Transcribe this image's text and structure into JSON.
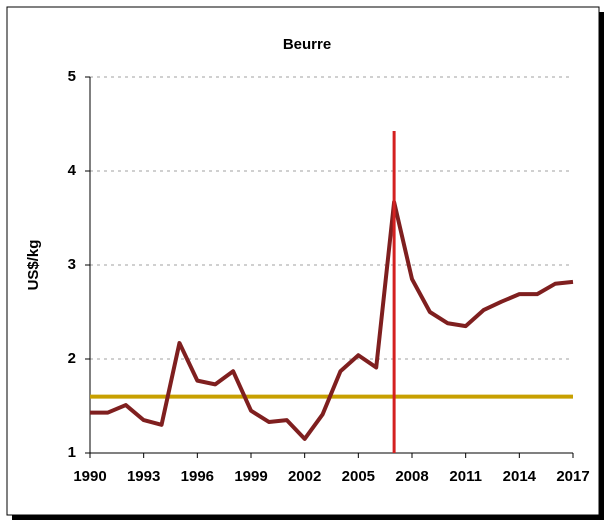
{
  "chart_data": {
    "type": "line",
    "title": "Beurre",
    "ylabel": "US$/kg",
    "x": [
      1990,
      1991,
      1992,
      1993,
      1994,
      1995,
      1996,
      1997,
      1998,
      1999,
      2000,
      2001,
      2002,
      2003,
      2004,
      2005,
      2006,
      2007,
      2008,
      2009,
      2010,
      2011,
      2012,
      2013,
      2014,
      2015,
      2016,
      2017
    ],
    "series": [
      {
        "name": "Beurre",
        "color": "#7f1f1f",
        "values": [
          1.43,
          1.43,
          1.51,
          1.35,
          1.3,
          2.17,
          1.77,
          1.73,
          1.87,
          1.45,
          1.33,
          1.35,
          1.15,
          1.41,
          1.87,
          2.04,
          1.91,
          3.67,
          2.85,
          2.5,
          2.38,
          2.35,
          2.52,
          2.61,
          2.69,
          2.69,
          2.8,
          2.82
        ]
      }
    ],
    "xlim": [
      1990,
      2017
    ],
    "xticks": [
      1990,
      1993,
      1996,
      1999,
      2002,
      2005,
      2008,
      2011,
      2014,
      2017
    ],
    "ylim": [
      1,
      5
    ],
    "yticks": [
      1,
      2,
      3,
      4,
      5
    ],
    "grid": true,
    "hline": {
      "value": 1.6,
      "color": "#c8a000"
    },
    "vline": {
      "value": 2007,
      "color": "#d42020"
    }
  }
}
